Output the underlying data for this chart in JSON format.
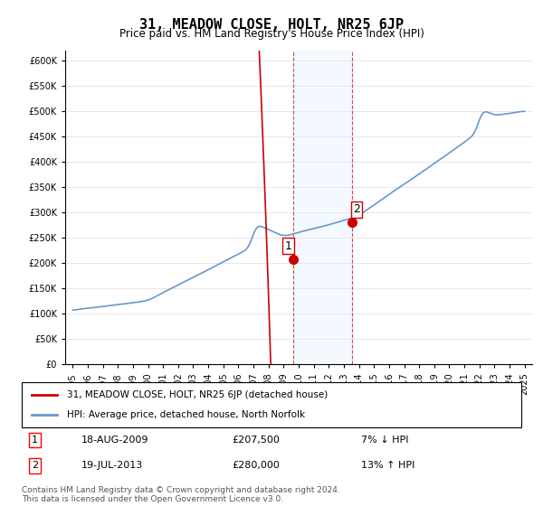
{
  "title": "31, MEADOW CLOSE, HOLT, NR25 6JP",
  "subtitle": "Price paid vs. HM Land Registry's House Price Index (HPI)",
  "legend_line1": "31, MEADOW CLOSE, HOLT, NR25 6JP (detached house)",
  "legend_line2": "HPI: Average price, detached house, North Norfolk",
  "transaction1_date": "18-AUG-2009",
  "transaction1_price": "£207,500",
  "transaction1_hpi": "7% ↓ HPI",
  "transaction2_date": "19-JUL-2013",
  "transaction2_price": "£280,000",
  "transaction2_hpi": "13% ↑ HPI",
  "footer": "Contains HM Land Registry data © Crown copyright and database right 2024.\nThis data is licensed under the Open Government Licence v3.0.",
  "hpi_color": "#6699cc",
  "price_color": "#cc0000",
  "transaction_color": "#cc0000",
  "shaded_region_color": "#ddeeff",
  "dashed_line_color": "#cc0000",
  "ylim": [
    0,
    620000
  ],
  "yticks": [
    0,
    50000,
    100000,
    150000,
    200000,
    250000,
    300000,
    350000,
    400000,
    450000,
    500000,
    550000,
    600000
  ],
  "xlim_start": 1994.5,
  "xlim_end": 2025.5
}
